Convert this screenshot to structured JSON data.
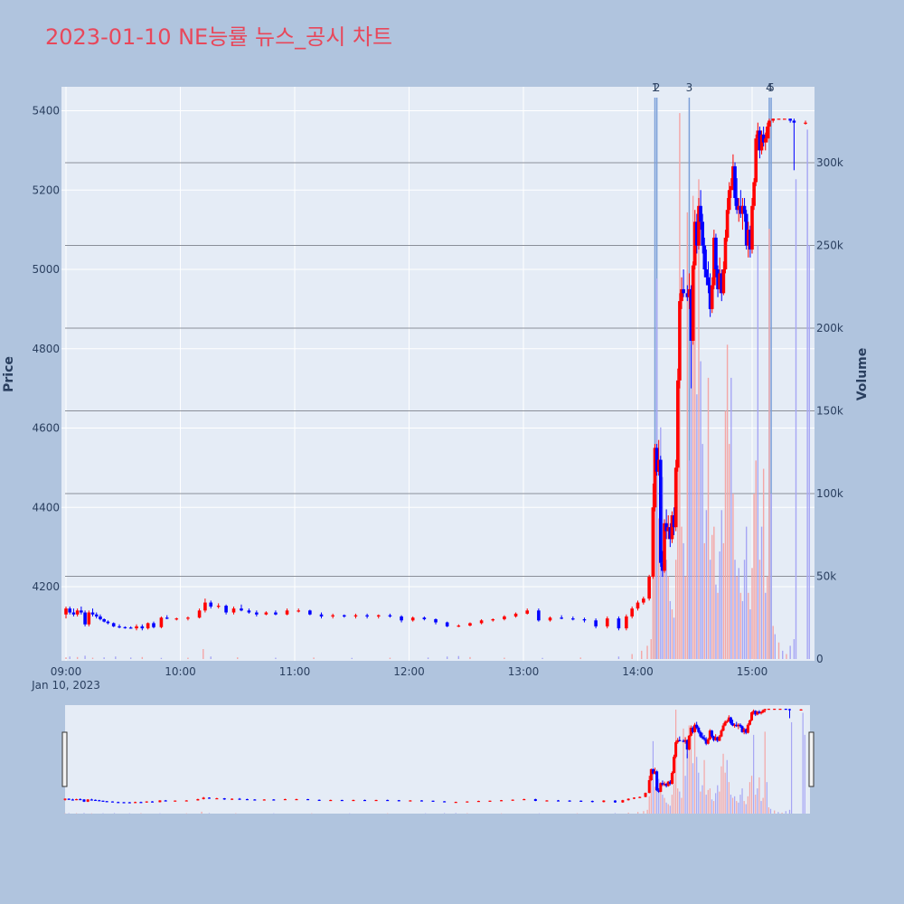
{
  "chart_data": {
    "type": "candlestick",
    "title": "2023-01-10 NE능률 뉴스_공시 차트",
    "title_color": "#e8475a",
    "ylabel": "Price",
    "y2label": "Volume",
    "x_date_label": "Jan 10, 2023",
    "x_ticks": [
      "09:00",
      "10:00",
      "11:00",
      "12:00",
      "13:00",
      "14:00",
      "15:00"
    ],
    "y_ticks": [
      4200,
      4400,
      4600,
      4800,
      5000,
      5200,
      5400
    ],
    "y2_ticks": [
      "0",
      "50k",
      "100k",
      "150k",
      "200k",
      "250k",
      "300k"
    ],
    "y2_tick_values": [
      0,
      50000,
      100000,
      150000,
      200000,
      250000,
      300000
    ],
    "ylim": [
      4015,
      5460
    ],
    "y2lim": [
      0,
      345000
    ],
    "x_range_minutes": [
      0,
      392
    ],
    "colors": {
      "up": "#ff0000",
      "down": "#0000ff",
      "vol_up": "#f4a6a6",
      "vol_down": "#a6a6f4",
      "news": "#7b9fd8",
      "page_bg": "#b0c4de",
      "plot_bg": "#e5ecf6"
    },
    "news_markers": [
      {
        "label": "1",
        "minute": 309
      },
      {
        "label": "2",
        "minute": 310
      },
      {
        "label": "3",
        "minute": 327
      },
      {
        "label": "4",
        "minute": 369
      },
      {
        "label": "5",
        "minute": 370
      }
    ],
    "ohlc": [
      [
        0,
        4130,
        4150,
        4120,
        4145
      ],
      [
        2,
        4145,
        4150,
        4130,
        4135
      ],
      [
        4,
        4135,
        4145,
        4125,
        4130
      ],
      [
        6,
        4130,
        4145,
        4125,
        4140
      ],
      [
        8,
        4140,
        4150,
        4130,
        4135
      ],
      [
        10,
        4135,
        4140,
        4100,
        4105
      ],
      [
        12,
        4105,
        4140,
        4100,
        4135
      ],
      [
        14,
        4135,
        4145,
        4125,
        4130
      ],
      [
        16,
        4130,
        4135,
        4120,
        4125
      ],
      [
        18,
        4125,
        4130,
        4115,
        4118
      ],
      [
        20,
        4118,
        4120,
        4110,
        4112
      ],
      [
        22,
        4112,
        4115,
        4105,
        4108
      ],
      [
        25,
        4108,
        4110,
        4098,
        4100
      ],
      [
        28,
        4100,
        4105,
        4095,
        4098
      ],
      [
        31,
        4098,
        4100,
        4094,
        4097
      ],
      [
        34,
        4097,
        4100,
        4094,
        4095
      ],
      [
        37,
        4095,
        4105,
        4090,
        4100
      ],
      [
        40,
        4100,
        4105,
        4090,
        4095
      ],
      [
        43,
        4095,
        4110,
        4092,
        4108
      ],
      [
        46,
        4108,
        4112,
        4095,
        4098
      ],
      [
        50,
        4098,
        4125,
        4095,
        4122
      ],
      [
        53,
        4122,
        4128,
        4118,
        4120
      ],
      [
        58,
        4118,
        4122,
        4115,
        4120
      ],
      [
        64,
        4120,
        4125,
        4115,
        4122
      ],
      [
        70,
        4122,
        4145,
        4120,
        4140
      ],
      [
        73,
        4140,
        4170,
        4135,
        4160
      ],
      [
        76,
        4160,
        4165,
        4145,
        4150
      ],
      [
        80,
        4150,
        4158,
        4145,
        4152
      ],
      [
        84,
        4152,
        4155,
        4130,
        4135
      ],
      [
        88,
        4135,
        4150,
        4130,
        4145
      ],
      [
        92,
        4145,
        4155,
        4138,
        4140
      ],
      [
        96,
        4140,
        4145,
        4132,
        4135
      ],
      [
        100,
        4135,
        4140,
        4125,
        4130
      ],
      [
        105,
        4130,
        4138,
        4128,
        4135
      ],
      [
        110,
        4135,
        4140,
        4128,
        4130
      ],
      [
        116,
        4130,
        4145,
        4128,
        4140
      ],
      [
        122,
        4140,
        4145,
        4135,
        4140
      ],
      [
        128,
        4140,
        4142,
        4128,
        4130
      ],
      [
        134,
        4130,
        4135,
        4120,
        4125
      ],
      [
        140,
        4125,
        4132,
        4120,
        4128
      ],
      [
        146,
        4128,
        4130,
        4122,
        4125
      ],
      [
        152,
        4125,
        4132,
        4120,
        4128
      ],
      [
        158,
        4128,
        4132,
        4120,
        4125
      ],
      [
        164,
        4125,
        4130,
        4120,
        4128
      ],
      [
        170,
        4128,
        4132,
        4122,
        4125
      ],
      [
        176,
        4125,
        4128,
        4110,
        4115
      ],
      [
        182,
        4115,
        4125,
        4112,
        4122
      ],
      [
        188,
        4122,
        4125,
        4115,
        4118
      ],
      [
        194,
        4118,
        4120,
        4105,
        4110
      ],
      [
        200,
        4110,
        4112,
        4098,
        4100
      ],
      [
        206,
        4100,
        4105,
        4098,
        4102
      ],
      [
        212,
        4102,
        4110,
        4100,
        4108
      ],
      [
        218,
        4108,
        4118,
        4105,
        4115
      ],
      [
        224,
        4115,
        4120,
        4112,
        4118
      ],
      [
        230,
        4118,
        4128,
        4115,
        4125
      ],
      [
        236,
        4125,
        4135,
        4122,
        4132
      ],
      [
        242,
        4132,
        4145,
        4130,
        4140
      ],
      [
        248,
        4140,
        4145,
        4112,
        4115
      ],
      [
        254,
        4115,
        4125,
        4112,
        4122
      ],
      [
        260,
        4122,
        4128,
        4118,
        4120
      ],
      [
        266,
        4120,
        4125,
        4115,
        4118
      ],
      [
        272,
        4118,
        4122,
        4110,
        4115
      ],
      [
        278,
        4115,
        4120,
        4095,
        4100
      ],
      [
        284,
        4100,
        4125,
        4095,
        4120
      ],
      [
        290,
        4120,
        4125,
        4090,
        4095
      ],
      [
        294,
        4095,
        4130,
        4090,
        4125
      ],
      [
        297,
        4125,
        4150,
        4120,
        4145
      ],
      [
        300,
        4145,
        4165,
        4140,
        4160
      ],
      [
        303,
        4160,
        4175,
        4155,
        4170
      ],
      [
        306,
        4170,
        4230,
        4165,
        4225
      ],
      [
        308,
        4225,
        4460,
        4220,
        4400
      ],
      [
        309,
        4400,
        4560,
        4390,
        4550
      ],
      [
        310,
        4550,
        4560,
        4480,
        4490
      ],
      [
        311,
        4490,
        4570,
        4480,
        4520
      ],
      [
        312,
        4520,
        4530,
        4250,
        4260
      ],
      [
        313,
        4260,
        4290,
        4225,
        4240
      ],
      [
        314,
        4240,
        4370,
        4235,
        4360
      ],
      [
        315,
        4360,
        4395,
        4320,
        4340
      ],
      [
        316,
        4340,
        4380,
        4320,
        4350
      ],
      [
        317,
        4350,
        4360,
        4300,
        4320
      ],
      [
        318,
        4320,
        4390,
        4310,
        4380
      ],
      [
        319,
        4380,
        4400,
        4330,
        4350
      ],
      [
        320,
        4350,
        4520,
        4340,
        4500
      ],
      [
        321,
        4500,
        4750,
        4490,
        4720
      ],
      [
        322,
        4720,
        4940,
        4700,
        4920
      ],
      [
        323,
        4920,
        4980,
        4900,
        4950
      ],
      [
        324,
        4950,
        5000,
        4930,
        4940
      ],
      [
        326,
        4940,
        4960,
        4920,
        4930
      ],
      [
        327,
        4930,
        4990,
        4900,
        4950
      ],
      [
        328,
        4950,
        4960,
        4700,
        4820
      ],
      [
        329,
        4820,
        5020,
        4810,
        5010
      ],
      [
        330,
        5010,
        5150,
        5000,
        5120
      ],
      [
        331,
        5120,
        5140,
        5040,
        5060
      ],
      [
        332,
        5060,
        5180,
        5050,
        5160
      ],
      [
        333,
        5160,
        5200,
        5100,
        5120
      ],
      [
        334,
        5120,
        5140,
        5040,
        5060
      ],
      [
        335,
        5060,
        5080,
        4980,
        5000
      ],
      [
        336,
        5000,
        5050,
        4960,
        4980
      ],
      [
        337,
        4980,
        5020,
        4940,
        4960
      ],
      [
        338,
        4960,
        4990,
        4880,
        4900
      ],
      [
        339,
        4900,
        4980,
        4890,
        4960
      ],
      [
        340,
        4960,
        5100,
        4950,
        5080
      ],
      [
        341,
        5080,
        5090,
        4980,
        5000
      ],
      [
        342,
        5000,
        5010,
        4930,
        4950
      ],
      [
        343,
        4950,
        5030,
        4940,
        4990
      ],
      [
        344,
        4990,
        5000,
        4920,
        4940
      ],
      [
        345,
        4940,
        5020,
        4935,
        5000
      ],
      [
        346,
        5000,
        5100,
        4990,
        5080
      ],
      [
        347,
        5080,
        5180,
        5070,
        5150
      ],
      [
        348,
        5150,
        5220,
        5140,
        5200
      ],
      [
        349,
        5200,
        5230,
        5180,
        5210
      ],
      [
        350,
        5210,
        5290,
        5200,
        5260
      ],
      [
        351,
        5260,
        5270,
        5160,
        5180
      ],
      [
        352,
        5180,
        5230,
        5140,
        5150
      ],
      [
        353,
        5150,
        5180,
        5120,
        5160
      ],
      [
        354,
        5160,
        5200,
        5130,
        5140
      ],
      [
        355,
        5140,
        5180,
        5100,
        5160
      ],
      [
        356,
        5160,
        5180,
        5120,
        5140
      ],
      [
        357,
        5140,
        5150,
        5050,
        5060
      ],
      [
        358,
        5060,
        5120,
        5030,
        5100
      ],
      [
        359,
        5100,
        5110,
        5030,
        5050
      ],
      [
        360,
        5050,
        5180,
        5040,
        5160
      ],
      [
        361,
        5160,
        5230,
        5150,
        5220
      ],
      [
        362,
        5220,
        5340,
        5210,
        5330
      ],
      [
        363,
        5330,
        5370,
        5300,
        5350
      ],
      [
        364,
        5350,
        5360,
        5280,
        5300
      ],
      [
        365,
        5300,
        5350,
        5290,
        5340
      ],
      [
        366,
        5340,
        5360,
        5310,
        5320
      ],
      [
        367,
        5320,
        5345,
        5300,
        5330
      ],
      [
        368,
        5330,
        5370,
        5320,
        5360
      ],
      [
        369,
        5360,
        5380,
        5330,
        5375
      ],
      [
        371,
        5375,
        5380,
        5370,
        5380
      ],
      [
        374,
        5380,
        5380,
        5380,
        5380
      ],
      [
        377,
        5380,
        5380,
        5380,
        5380
      ],
      [
        380,
        5380,
        5380,
        5370,
        5375
      ],
      [
        382,
        5375,
        5380,
        5250,
        5370
      ],
      [
        388,
        5370,
        5375,
        5365,
        5370
      ]
    ],
    "volume": [
      [
        0,
        1000,
        1
      ],
      [
        2,
        1500,
        0
      ],
      [
        6,
        1200,
        1
      ],
      [
        10,
        2000,
        0
      ],
      [
        14,
        800,
        1
      ],
      [
        20,
        1000,
        0
      ],
      [
        26,
        1500,
        0
      ],
      [
        34,
        900,
        0
      ],
      [
        40,
        1200,
        1
      ],
      [
        50,
        700,
        0
      ],
      [
        64,
        800,
        1
      ],
      [
        72,
        6000,
        1
      ],
      [
        76,
        1500,
        0
      ],
      [
        90,
        1000,
        1
      ],
      [
        110,
        800,
        0
      ],
      [
        130,
        900,
        1
      ],
      [
        150,
        700,
        0
      ],
      [
        170,
        800,
        1
      ],
      [
        190,
        900,
        0
      ],
      [
        200,
        1500,
        0
      ],
      [
        206,
        1800,
        0
      ],
      [
        212,
        1200,
        1
      ],
      [
        230,
        800,
        1
      ],
      [
        250,
        700,
        0
      ],
      [
        270,
        900,
        1
      ],
      [
        290,
        1500,
        0
      ],
      [
        297,
        3000,
        1
      ],
      [
        302,
        5000,
        1
      ],
      [
        305,
        8000,
        1
      ],
      [
        307,
        12000,
        1
      ],
      [
        308,
        55000,
        1
      ],
      [
        309,
        130000,
        1
      ],
      [
        310,
        230000,
        0
      ],
      [
        311,
        85000,
        1
      ],
      [
        312,
        140000,
        0
      ],
      [
        313,
        110000,
        0
      ],
      [
        314,
        80000,
        1
      ],
      [
        315,
        60000,
        0
      ],
      [
        316,
        50000,
        1
      ],
      [
        317,
        35000,
        0
      ],
      [
        318,
        30000,
        1
      ],
      [
        319,
        25000,
        0
      ],
      [
        320,
        60000,
        1
      ],
      [
        321,
        130000,
        1
      ],
      [
        322,
        330000,
        1
      ],
      [
        323,
        80000,
        1
      ],
      [
        324,
        70000,
        0
      ],
      [
        325,
        50000,
        1
      ],
      [
        326,
        270000,
        1
      ],
      [
        327,
        120000,
        0
      ],
      [
        328,
        190000,
        0
      ],
      [
        329,
        280000,
        1
      ],
      [
        330,
        250000,
        1
      ],
      [
        331,
        160000,
        0
      ],
      [
        332,
        290000,
        1
      ],
      [
        333,
        180000,
        0
      ],
      [
        334,
        130000,
        0
      ],
      [
        335,
        70000,
        1
      ],
      [
        336,
        90000,
        0
      ],
      [
        337,
        170000,
        1
      ],
      [
        338,
        60000,
        0
      ],
      [
        339,
        75000,
        1
      ],
      [
        340,
        80000,
        1
      ],
      [
        341,
        45000,
        0
      ],
      [
        342,
        40000,
        1
      ],
      [
        343,
        65000,
        0
      ],
      [
        344,
        90000,
        0
      ],
      [
        345,
        70000,
        1
      ],
      [
        346,
        150000,
        1
      ],
      [
        347,
        190000,
        1
      ],
      [
        348,
        130000,
        1
      ],
      [
        349,
        170000,
        0
      ],
      [
        350,
        100000,
        1
      ],
      [
        351,
        60000,
        0
      ],
      [
        352,
        50000,
        1
      ],
      [
        353,
        55000,
        0
      ],
      [
        354,
        40000,
        1
      ],
      [
        355,
        35000,
        0
      ],
      [
        356,
        60000,
        0
      ],
      [
        357,
        80000,
        0
      ],
      [
        358,
        40000,
        1
      ],
      [
        359,
        30000,
        0
      ],
      [
        360,
        55000,
        1
      ],
      [
        361,
        100000,
        1
      ],
      [
        362,
        120000,
        1
      ],
      [
        363,
        250000,
        0
      ],
      [
        364,
        60000,
        1
      ],
      [
        365,
        80000,
        0
      ],
      [
        366,
        115000,
        1
      ],
      [
        367,
        40000,
        0
      ],
      [
        368,
        50000,
        1
      ],
      [
        369,
        260000,
        1
      ],
      [
        370,
        100000,
        0
      ],
      [
        371,
        20000,
        1
      ],
      [
        372,
        15000,
        0
      ],
      [
        374,
        10000,
        1
      ],
      [
        376,
        5000,
        0
      ],
      [
        378,
        3000,
        1
      ],
      [
        380,
        8000,
        0
      ],
      [
        382,
        12000,
        0
      ],
      [
        383,
        290000,
        0
      ],
      [
        389,
        320000,
        0
      ],
      [
        390,
        250000,
        0
      ]
    ]
  }
}
